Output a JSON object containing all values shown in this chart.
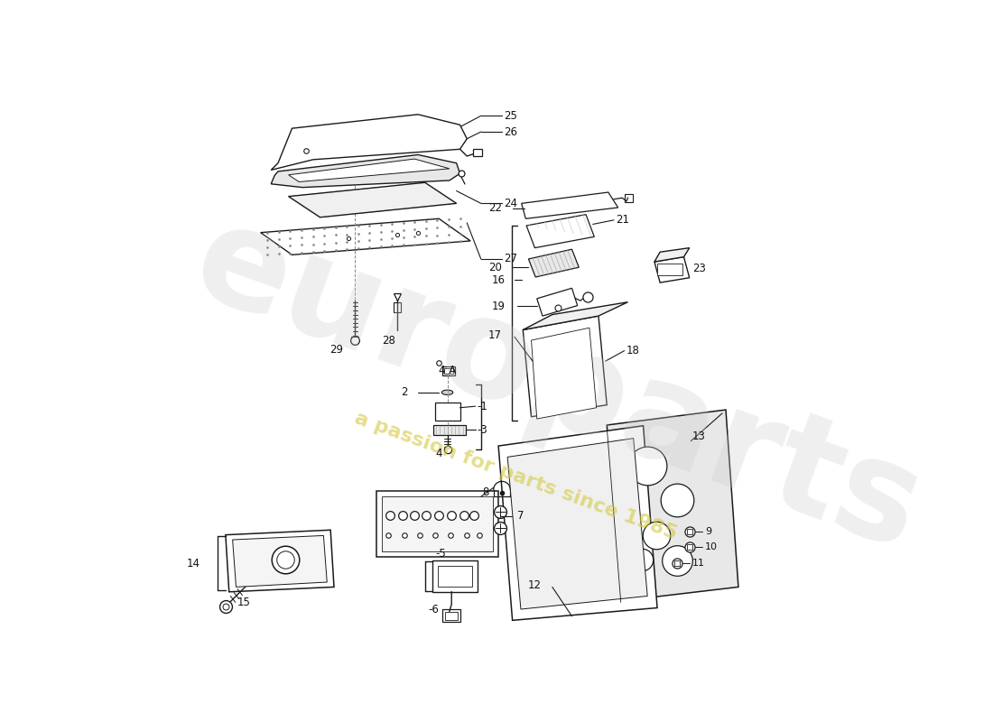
{
  "bg": "#ffffff",
  "lc": "#1a1a1a",
  "wm1": "europarts",
  "wm2": "a passion for parts since 1985",
  "figsize": [
    11.0,
    8.0
  ],
  "dpi": 100
}
